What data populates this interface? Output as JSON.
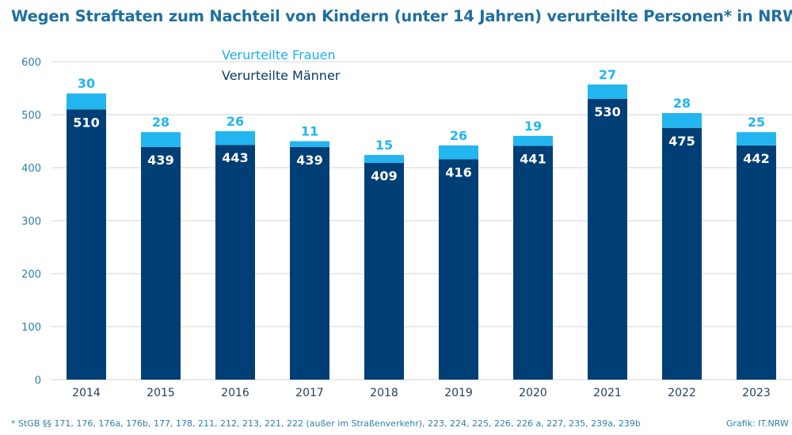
{
  "title": "Wegen Straftaten zum Nachteil von Kindern (unter 14 Jahren) verurteilte Personen* in NRW",
  "footnote": "*  StGB §§ 171, 176, 176a, 176b, 177, 178, 211, 212, 213, 221, 222 (außer im Straßenverkehr), 223, 224, 225, 226, 226 a, 227, 235, 239a, 239b",
  "source": "Grafik: IT.NRW",
  "colors": {
    "women": "#22b5f0",
    "men": "#003f75",
    "grid": "#d6d6d6",
    "axis_text": "#2f7fa9"
  },
  "chart_data": {
    "type": "bar",
    "stacked": true,
    "categories": [
      "2014",
      "2015",
      "2016",
      "2017",
      "2018",
      "2019",
      "2020",
      "2021",
      "2022",
      "2023"
    ],
    "series": [
      {
        "name": "Verurteilte Männer",
        "values": [
          510,
          439,
          443,
          439,
          409,
          416,
          441,
          530,
          475,
          442
        ]
      },
      {
        "name": "Verurteilte Frauen",
        "values": [
          30,
          28,
          26,
          11,
          15,
          26,
          19,
          27,
          28,
          25
        ]
      }
    ],
    "yticks": [
      0,
      100,
      200,
      300,
      400,
      500,
      600
    ],
    "ylim": [
      0,
      600
    ],
    "grid": true,
    "legend_position": "top-left"
  }
}
